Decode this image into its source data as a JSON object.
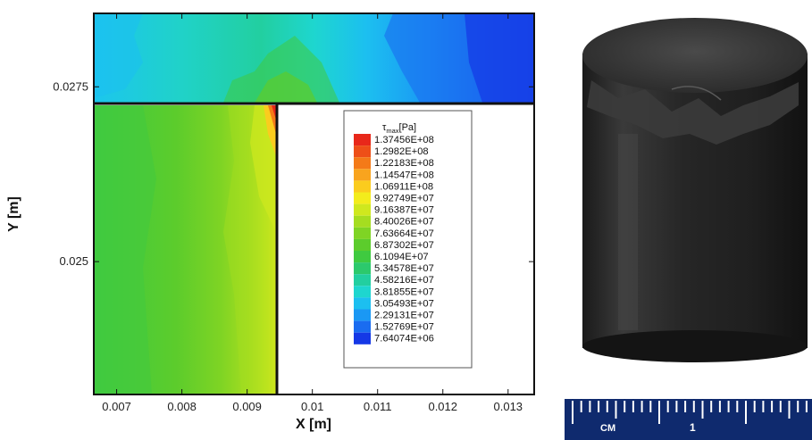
{
  "chart_data": {
    "type": "contour",
    "xlabel": "X [m]",
    "ylabel": "Y [m]",
    "xlim": [
      0.00665,
      0.0134
    ],
    "ylim": [
      0.0231,
      0.02855
    ],
    "x_ticks": [
      {
        "value": 0.007,
        "label": "0.007"
      },
      {
        "value": 0.008,
        "label": "0.008"
      },
      {
        "value": 0.009,
        "label": "0.009"
      },
      {
        "value": 0.01,
        "label": "0.01"
      },
      {
        "value": 0.011,
        "label": "0.011"
      },
      {
        "value": 0.012,
        "label": "0.012"
      },
      {
        "value": 0.013,
        "label": "0.013"
      }
    ],
    "y_ticks": [
      {
        "value": 0.0275,
        "label": "0.0275"
      },
      {
        "value": 0.025,
        "label": "0.025"
      }
    ],
    "domain_step": {
      "x": 0.0095,
      "y": 0.0275
    },
    "legend": {
      "title_main": "τ",
      "title_sub": "max",
      "title_unit": "[Pa]",
      "position": "right",
      "levels": [
        {
          "label": "1.37456E+08",
          "value": 137456000,
          "color": "#e8281a"
        },
        {
          "label": "1.2982E+08",
          "value": 129820000,
          "color": "#ee4f18"
        },
        {
          "label": "1.22183E+08",
          "value": 122183000,
          "color": "#f47a18"
        },
        {
          "label": "1.14547E+08",
          "value": 114547000,
          "color": "#f9a41e"
        },
        {
          "label": "1.06911E+08",
          "value": 106911000,
          "color": "#fbcc1e"
        },
        {
          "label": "9.92749E+07",
          "value": 99274900,
          "color": "#f3ec1c"
        },
        {
          "label": "9.16387E+07",
          "value": 91638700,
          "color": "#cfe81e"
        },
        {
          "label": "8.40026E+07",
          "value": 84002600,
          "color": "#a5dd20"
        },
        {
          "label": "7.63664E+07",
          "value": 76366400,
          "color": "#7fd424"
        },
        {
          "label": "6.87302E+07",
          "value": 68730200,
          "color": "#5ccc2c"
        },
        {
          "label": "6.1094E+07",
          "value": 61094000,
          "color": "#3fca40"
        },
        {
          "label": "5.34578E+07",
          "value": 53457800,
          "color": "#2cc96c"
        },
        {
          "label": "4.58216E+07",
          "value": 45821600,
          "color": "#22cfa0"
        },
        {
          "label": "3.81855E+07",
          "value": 38185500,
          "color": "#1ed6cf"
        },
        {
          "label": "3.05493E+07",
          "value": 30549300,
          "color": "#1cbff0"
        },
        {
          "label": "2.29131E+07",
          "value": 22913100,
          "color": "#1a98f4"
        },
        {
          "label": "1.52769E+07",
          "value": 15276900,
          "color": "#1a6cf0"
        },
        {
          "label": "7.64074E+06",
          "value": 7640740,
          "color": "#1538e6"
        }
      ]
    }
  },
  "photo": {
    "ruler": {
      "unit_label": "CM",
      "number_label": "1",
      "bg_color": "#0f2a6e",
      "mark_color": "#ffffff"
    },
    "sample_color": "#2b2b2b"
  }
}
